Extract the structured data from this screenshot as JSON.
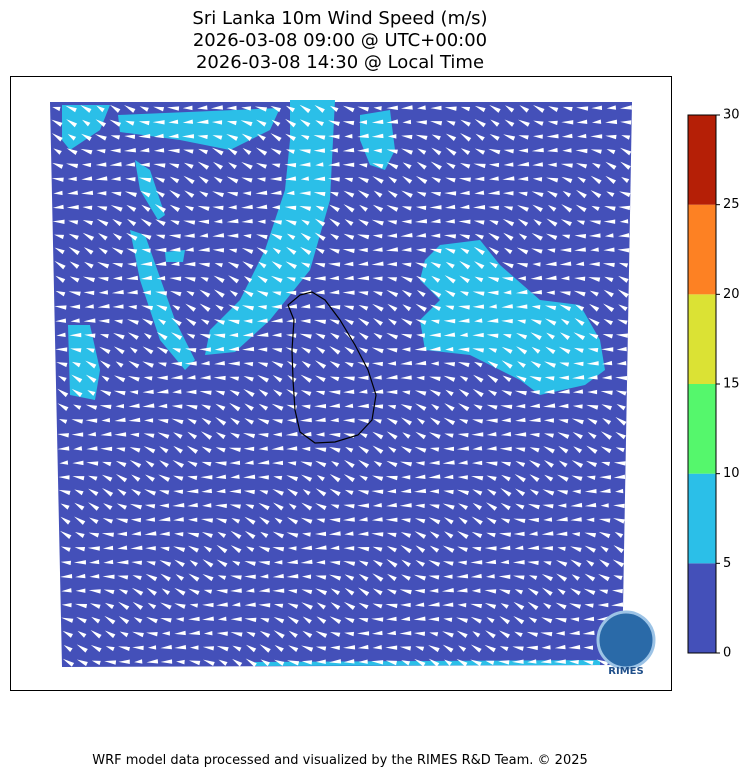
{
  "chart_data": {
    "type": "map",
    "title": [
      "Sri Lanka 10m Wind Speed (m/s)",
      "2026-03-08 09:00 @ UTC+00:00",
      "2026-03-08 14:30 @ Local Time"
    ],
    "colorbar": {
      "ylim": [
        0,
        30
      ],
      "yticks": [
        0,
        5,
        10,
        15,
        20,
        25,
        30
      ],
      "colors": [
        "#4450b9",
        "#2bbfe8",
        "#55f76c",
        "#dbe234",
        "#fd8123",
        "#b51f06"
      ]
    },
    "logo": "RIMES",
    "footer": "WRF model data processed and visualized by the RIMES R&D Team. © 2025"
  }
}
